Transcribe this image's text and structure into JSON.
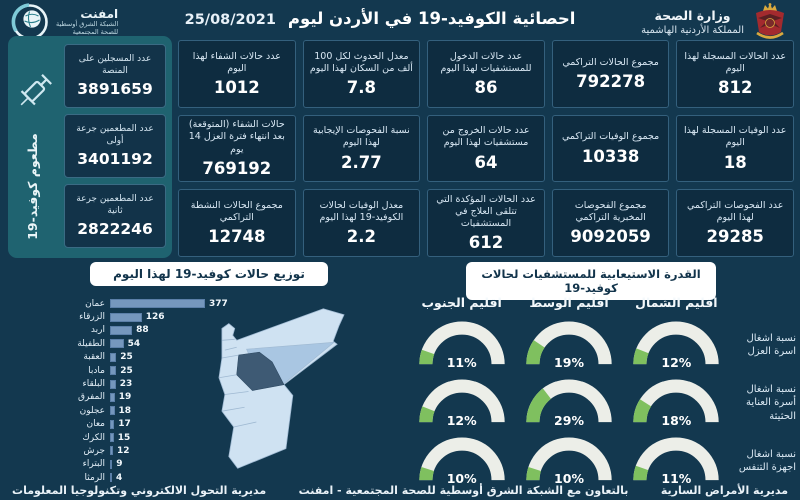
{
  "colors": {
    "background": "#13384F",
    "card": "#0E2C40",
    "card_border": "#34607D",
    "teal_panel": "#1F6370",
    "bar": "#7597BD",
    "gauge_green": "#7FC05F",
    "gauge_track": "#ECEEE8",
    "map_light": "#CFE2F2",
    "map_medium": "#A9C6E2",
    "map_dark": "#3E5A74",
    "pill_bg": "#FFFFFF",
    "pill_text": "#12344B"
  },
  "header": {
    "title": "احصائية الكوفيد-19 في الأردن ليوم",
    "date": "25/08/2021",
    "ministry_name": "وزارة الصحة",
    "ministry_subtitle": "المملكة الأردنية الهاشمية",
    "emphnet_name": "امفنت",
    "emphnet_line1": "الشبكة الشرق أوسطية",
    "emphnet_line2": "للصحة المجتمعية"
  },
  "vaccination": {
    "vertical_label": "مطعوم كوفيد-19",
    "cards": [
      {
        "label": "عدد المسجلين على المنصة",
        "value": "3891659"
      },
      {
        "label": "عدد المطعمين جرعة أولى",
        "value": "3401192"
      },
      {
        "label": "عدد المطعمين جرعة ثانية",
        "value": "2822246"
      }
    ]
  },
  "stats": [
    {
      "label": "عدد الحالات المسجلة لهذا اليوم",
      "value": "812"
    },
    {
      "label": "مجموع الحالات التراكمي",
      "value": "792278"
    },
    {
      "label": "عدد حالات الدخول للمستشفيات لهذا اليوم",
      "value": "86"
    },
    {
      "label": "معدل الحدوث لكل 100 ألف من السكان لهذا اليوم",
      "value": "7.8"
    },
    {
      "label": "عدد حالات الشفاء لهذا اليوم",
      "value": "1012"
    },
    {
      "label": "عدد الوفيات المسجلة لهذا اليوم",
      "value": "18"
    },
    {
      "label": "مجموع الوفيات التراكمي",
      "value": "10338"
    },
    {
      "label": "عدد حالات الخروج من مستشفيات لهذا اليوم",
      "value": "64"
    },
    {
      "label": "نسبة الفحوصات الإيجابية لهذا اليوم",
      "value": "2.77"
    },
    {
      "label": "حالات الشفاء (المتوقعة) بعد انتهاء فترة العزل 14 يوم",
      "value": "769192"
    },
    {
      "label": "عدد الفحوصات التراكمي لهذا اليوم",
      "value": "29285"
    },
    {
      "label": "مجموع الفحوصات المخبرية التراكمي",
      "value": "9092059"
    },
    {
      "label": "عدد الحالات المؤكدة التي تتلقى العلاج في المستشفيات",
      "value": "612"
    },
    {
      "label": "معدل الوفيات لحالات الكوفيد-19 لهذا اليوم",
      "value": "2.2"
    },
    {
      "label": "مجموع الحالات النشطة التراكمي",
      "value": "12748"
    }
  ],
  "chart_data": [
    {
      "type": "bar",
      "title": "توزيع حالات كوفيد-19 لهذا اليوم",
      "orientation": "horizontal",
      "categories": [
        "عمان",
        "الزرقاء",
        "اربد",
        "الطفيلة",
        "العقبة",
        "مادبا",
        "البلقاء",
        "المفرق",
        "عجلون",
        "معان",
        "الكرك",
        "جرش",
        "البتراء",
        "الرمثا"
      ],
      "values": [
        377,
        126,
        88,
        54,
        25,
        25,
        23,
        19,
        18,
        17,
        15,
        12,
        9,
        4
      ],
      "xlim": [
        0,
        400
      ],
      "bar_color": "#7597BD"
    },
    {
      "type": "gauge-grid",
      "title": "القدرة الاستيعابية للمستشفيات لحالات كوفيد-19",
      "columns": [
        "اقليم الشمال",
        "اقليم الوسط",
        "اقليم الجنوب"
      ],
      "rows": [
        "نسبة اشغال اسرة العزل",
        "نسبة اشغال أسرة العناية الحثيثة",
        "نسبة اشغال اجهزة التنفس"
      ],
      "values": [
        [
          12,
          19,
          11
        ],
        [
          18,
          29,
          12
        ],
        [
          11,
          10,
          10
        ]
      ],
      "unit": "%",
      "fill_color": "#7FC05F"
    }
  ],
  "footer": {
    "right": "مديرية الأمراض السارية",
    "center": "بالتعاون مع الشبكة الشرق أوسطية للصحة المجتمعية - امفنت",
    "left": "مديرية التحول الالكتروني وتكنولوجيا المعلومات"
  }
}
